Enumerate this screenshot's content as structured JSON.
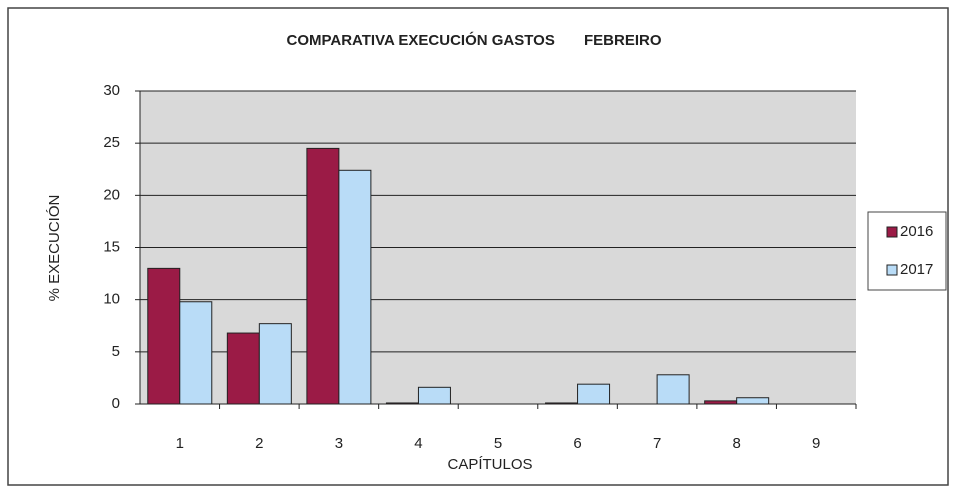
{
  "chart_data": {
    "type": "bar",
    "title": "COMPARATIVA EXECUCIÓN GASTOS       FEBREIRO",
    "x_label": "CAPÍTULOS",
    "y_label": "% EXECUCIÓN",
    "categories": [
      "1",
      "2",
      "3",
      "4",
      "5",
      "6",
      "7",
      "8",
      "9"
    ],
    "series": [
      {
        "name": "2016",
        "color": "#9b1b46",
        "values": [
          13.0,
          6.8,
          24.5,
          0.1,
          0,
          0.1,
          0,
          0.3,
          0
        ]
      },
      {
        "name": "2017",
        "color": "#b9dcf7",
        "values": [
          9.8,
          7.7,
          22.4,
          1.6,
          0,
          1.9,
          2.8,
          0.6,
          0
        ]
      }
    ],
    "ylim": [
      0,
      30
    ],
    "yticks": [
      0,
      5,
      10,
      15,
      20,
      25,
      30
    ],
    "grid": true,
    "legend": "right"
  }
}
